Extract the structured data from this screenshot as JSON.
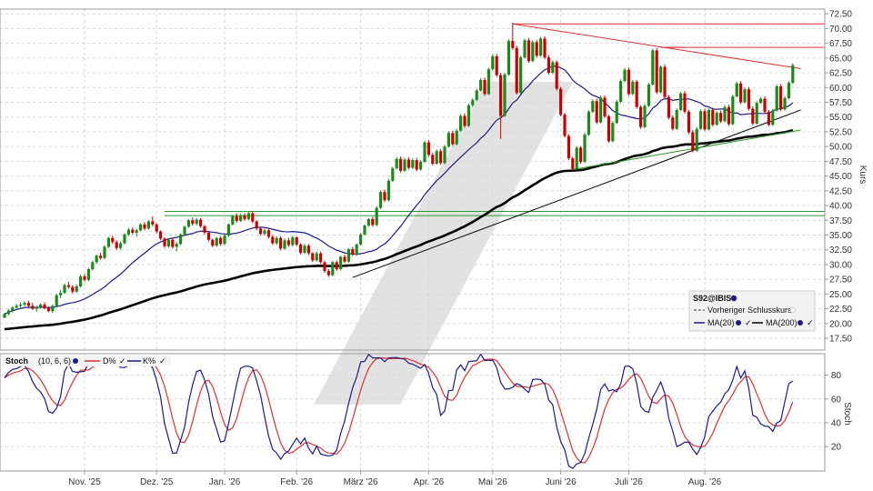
{
  "chart_data": {
    "type": "line",
    "symbol": "S92@IBIS",
    "price_panel": {
      "ylabel": "Kurs",
      "y_ticks": [
        "17.50",
        "20.00",
        "22.50",
        "25.00",
        "27.50",
        "30.00",
        "32.50",
        "35.00",
        "37.50",
        "40.00",
        "42.50",
        "45.00",
        "47.50",
        "50.00",
        "52.50",
        "55.00",
        "57.50",
        "60.00",
        "62.50",
        "65.00",
        "67.50",
        "70.00",
        "72.50"
      ],
      "ylim": [
        15.5,
        73.3
      ],
      "grid": true,
      "candles": [
        [
          21.0,
          21.8,
          20.9,
          21.6
        ],
        [
          21.6,
          22.4,
          21.4,
          22.2
        ],
        [
          22.2,
          22.9,
          21.9,
          22.7
        ],
        [
          22.7,
          23.3,
          22.4,
          23.0
        ],
        [
          23.0,
          23.6,
          22.6,
          23.2
        ],
        [
          23.2,
          23.8,
          22.9,
          23.5
        ],
        [
          23.5,
          23.9,
          22.8,
          23.0
        ],
        [
          23.0,
          23.5,
          22.3,
          22.5
        ],
        [
          22.5,
          23.1,
          22.0,
          22.8
        ],
        [
          22.8,
          23.4,
          22.5,
          23.2
        ],
        [
          23.2,
          23.6,
          22.4,
          22.6
        ],
        [
          22.6,
          22.9,
          21.9,
          22.1
        ],
        [
          22.1,
          23.2,
          21.8,
          23.0
        ],
        [
          23.0,
          25.0,
          22.9,
          24.8
        ],
        [
          24.8,
          25.7,
          24.3,
          25.2
        ],
        [
          25.2,
          26.8,
          25.0,
          26.5
        ],
        [
          26.5,
          27.1,
          25.9,
          26.2
        ],
        [
          26.2,
          26.5,
          25.1,
          25.4
        ],
        [
          25.4,
          26.6,
          25.2,
          26.3
        ],
        [
          26.3,
          28.3,
          26.1,
          28.0
        ],
        [
          28.0,
          28.4,
          27.1,
          27.4
        ],
        [
          27.4,
          29.4,
          27.2,
          29.2
        ],
        [
          29.2,
          30.6,
          29.0,
          30.4
        ],
        [
          30.4,
          31.7,
          30.1,
          31.5
        ],
        [
          31.5,
          32.0,
          30.8,
          31.1
        ],
        [
          31.1,
          33.3,
          30.9,
          33.0
        ],
        [
          33.0,
          34.7,
          32.8,
          34.5
        ],
        [
          34.5,
          34.9,
          33.5,
          33.8
        ],
        [
          33.8,
          34.1,
          32.5,
          32.8
        ],
        [
          32.8,
          33.9,
          32.5,
          33.6
        ],
        [
          33.6,
          35.3,
          33.4,
          35.1
        ],
        [
          35.1,
          36.2,
          34.8,
          35.9
        ],
        [
          35.9,
          36.3,
          35.1,
          35.4
        ],
        [
          35.4,
          36.1,
          34.7,
          35.8
        ],
        [
          35.8,
          37.0,
          35.6,
          36.8
        ],
        [
          36.8,
          37.2,
          35.8,
          36.1
        ],
        [
          36.1,
          37.5,
          35.9,
          37.3
        ],
        [
          37.3,
          38.2,
          36.5,
          36.8
        ],
        [
          36.8,
          37.0,
          35.3,
          35.6
        ],
        [
          35.6,
          35.8,
          34.1,
          34.4
        ],
        [
          34.4,
          34.6,
          32.8,
          33.1
        ],
        [
          33.1,
          34.4,
          32.8,
          34.2
        ],
        [
          34.2,
          34.5,
          32.7,
          33.0
        ],
        [
          33.0,
          33.8,
          32.2,
          33.5
        ],
        [
          33.5,
          35.3,
          33.3,
          35.1
        ],
        [
          35.1,
          36.6,
          34.9,
          36.4
        ],
        [
          36.4,
          37.7,
          36.2,
          37.5
        ],
        [
          37.5,
          38.0,
          36.6,
          36.9
        ],
        [
          36.9,
          37.9,
          36.6,
          37.6
        ],
        [
          37.6,
          37.9,
          36.2,
          36.5
        ],
        [
          36.5,
          36.7,
          35.1,
          35.4
        ],
        [
          35.4,
          35.6,
          33.9,
          34.2
        ],
        [
          34.2,
          34.4,
          32.9,
          33.2
        ],
        [
          33.2,
          34.7,
          33.0,
          34.5
        ],
        [
          34.5,
          34.8,
          33.2,
          33.5
        ],
        [
          33.5,
          35.1,
          33.3,
          34.9
        ],
        [
          34.9,
          37.0,
          34.7,
          36.8
        ],
        [
          36.8,
          38.4,
          36.6,
          38.2
        ],
        [
          38.2,
          38.7,
          37.1,
          37.4
        ],
        [
          37.4,
          38.6,
          37.2,
          38.3
        ],
        [
          38.3,
          38.7,
          37.4,
          37.7
        ],
        [
          37.7,
          38.9,
          37.5,
          38.7
        ],
        [
          38.7,
          39.0,
          37.0,
          37.3
        ],
        [
          37.3,
          37.5,
          35.8,
          36.1
        ],
        [
          36.1,
          36.3,
          34.9,
          35.2
        ],
        [
          35.2,
          36.1,
          34.9,
          35.8
        ],
        [
          35.8,
          36.2,
          34.4,
          34.7
        ],
        [
          34.7,
          35.0,
          33.3,
          33.6
        ],
        [
          33.6,
          34.8,
          33.3,
          34.5
        ],
        [
          34.5,
          34.8,
          32.4,
          32.7
        ],
        [
          32.7,
          34.4,
          32.5,
          34.1
        ],
        [
          34.1,
          34.5,
          33.0,
          33.3
        ],
        [
          33.3,
          34.9,
          33.1,
          34.6
        ],
        [
          34.6,
          34.8,
          33.1,
          33.4
        ],
        [
          33.4,
          33.6,
          31.7,
          32.0
        ],
        [
          32.0,
          33.5,
          31.8,
          33.2
        ],
        [
          33.2,
          33.5,
          31.6,
          31.9
        ],
        [
          31.9,
          32.1,
          30.4,
          30.7
        ],
        [
          30.7,
          32.2,
          30.5,
          31.9
        ],
        [
          31.9,
          32.2,
          30.1,
          30.4
        ],
        [
          30.4,
          30.6,
          28.6,
          28.9
        ],
        [
          28.9,
          29.2,
          27.9,
          28.2
        ],
        [
          28.2,
          30.6,
          28.0,
          30.4
        ],
        [
          30.4,
          30.7,
          28.9,
          29.2
        ],
        [
          29.2,
          31.5,
          29.0,
          31.3
        ],
        [
          31.3,
          31.7,
          30.2,
          30.5
        ],
        [
          30.5,
          32.8,
          30.3,
          32.6
        ],
        [
          32.6,
          33.0,
          31.4,
          31.7
        ],
        [
          31.7,
          33.6,
          31.5,
          33.4
        ],
        [
          33.4,
          35.3,
          33.2,
          35.1
        ],
        [
          35.1,
          36.8,
          34.9,
          36.6
        ],
        [
          36.6,
          37.9,
          36.4,
          37.7
        ],
        [
          37.7,
          38.1,
          36.4,
          36.7
        ],
        [
          36.7,
          39.9,
          36.5,
          39.6
        ],
        [
          39.6,
          42.6,
          39.4,
          42.3
        ],
        [
          42.3,
          42.7,
          40.6,
          40.9
        ],
        [
          40.9,
          44.5,
          40.7,
          44.2
        ],
        [
          44.2,
          46.6,
          44.0,
          46.3
        ],
        [
          46.3,
          48.2,
          46.1,
          47.9
        ],
        [
          47.9,
          48.3,
          45.6,
          45.9
        ],
        [
          45.9,
          48.1,
          45.7,
          47.8
        ],
        [
          47.8,
          48.2,
          46.1,
          46.4
        ],
        [
          46.4,
          48.0,
          46.2,
          47.7
        ],
        [
          47.7,
          48.1,
          45.8,
          46.1
        ],
        [
          46.1,
          47.7,
          45.9,
          47.4
        ],
        [
          47.4,
          51.0,
          47.2,
          50.7
        ],
        [
          50.7,
          51.1,
          48.3,
          48.6
        ],
        [
          48.6,
          49.0,
          46.8,
          47.1
        ],
        [
          47.1,
          49.5,
          46.9,
          49.2
        ],
        [
          49.2,
          49.6,
          46.9,
          47.2
        ],
        [
          47.2,
          50.3,
          47.0,
          50.0
        ],
        [
          50.0,
          52.6,
          49.8,
          52.3
        ],
        [
          52.3,
          52.7,
          50.1,
          50.4
        ],
        [
          50.4,
          53.0,
          50.2,
          52.7
        ],
        [
          52.7,
          55.5,
          52.5,
          55.2
        ],
        [
          55.2,
          55.6,
          53.2,
          53.5
        ],
        [
          53.5,
          57.3,
          53.3,
          57.0
        ],
        [
          57.0,
          58.2,
          56.7,
          57.9
        ],
        [
          57.9,
          59.8,
          57.7,
          59.5
        ],
        [
          59.5,
          61.6,
          59.3,
          61.3
        ],
        [
          61.3,
          61.7,
          58.6,
          58.9
        ],
        [
          58.9,
          63.4,
          58.7,
          63.1
        ],
        [
          63.1,
          65.6,
          62.9,
          65.3
        ],
        [
          65.3,
          65.7,
          61.8,
          62.1
        ],
        [
          62.1,
          62.5,
          51.3,
          55.2
        ],
        [
          55.2,
          62.5,
          55.0,
          62.2
        ],
        [
          62.2,
          68.2,
          62.0,
          67.9
        ],
        [
          67.9,
          71.0,
          66.4,
          66.7
        ],
        [
          66.7,
          67.1,
          58.8,
          59.1
        ],
        [
          59.1,
          65.4,
          58.9,
          65.1
        ],
        [
          65.1,
          68.3,
          64.9,
          68.0
        ],
        [
          68.0,
          68.4,
          64.2,
          64.5
        ],
        [
          64.5,
          68.0,
          64.3,
          67.7
        ],
        [
          67.7,
          68.1,
          65.1,
          65.4
        ],
        [
          65.4,
          68.6,
          65.2,
          68.3
        ],
        [
          68.3,
          68.7,
          64.8,
          65.1
        ],
        [
          65.1,
          65.5,
          62.2,
          62.5
        ],
        [
          62.5,
          64.6,
          62.3,
          64.3
        ],
        [
          64.3,
          64.6,
          59.5,
          59.8
        ],
        [
          59.8,
          60.1,
          55.1,
          55.4
        ],
        [
          55.4,
          55.7,
          51.5,
          51.8
        ],
        [
          51.8,
          52.1,
          47.7,
          48.0
        ],
        [
          48.0,
          48.3,
          45.9,
          46.2
        ],
        [
          46.2,
          50.1,
          46.0,
          49.8
        ],
        [
          49.8,
          50.1,
          47.1,
          47.4
        ],
        [
          47.4,
          52.3,
          47.2,
          52.0
        ],
        [
          52.0,
          56.2,
          51.8,
          55.9
        ],
        [
          55.9,
          58.0,
          55.7,
          57.7
        ],
        [
          57.7,
          58.1,
          53.8,
          54.1
        ],
        [
          54.1,
          58.6,
          53.9,
          58.3
        ],
        [
          58.3,
          58.7,
          54.8,
          55.1
        ],
        [
          55.1,
          55.4,
          50.6,
          50.9
        ],
        [
          50.9,
          54.3,
          50.7,
          54.0
        ],
        [
          54.0,
          57.9,
          53.8,
          57.6
        ],
        [
          57.6,
          61.4,
          57.4,
          61.1
        ],
        [
          61.1,
          63.3,
          60.9,
          63.0
        ],
        [
          63.0,
          63.4,
          58.6,
          58.9
        ],
        [
          58.9,
          61.3,
          58.7,
          61.0
        ],
        [
          61.0,
          61.3,
          56.4,
          56.7
        ],
        [
          56.7,
          57.0,
          53.0,
          53.3
        ],
        [
          53.3,
          57.2,
          53.1,
          56.9
        ],
        [
          56.9,
          60.8,
          56.7,
          60.5
        ],
        [
          60.5,
          66.6,
          60.3,
          66.3
        ],
        [
          66.3,
          66.7,
          58.9,
          59.2
        ],
        [
          59.2,
          63.8,
          59.0,
          63.5
        ],
        [
          63.5,
          63.9,
          58.1,
          58.4
        ],
        [
          58.4,
          58.7,
          54.6,
          54.9
        ],
        [
          54.9,
          55.3,
          52.7,
          53.0
        ],
        [
          53.0,
          56.5,
          52.8,
          56.2
        ],
        [
          56.2,
          59.3,
          56.0,
          59.0
        ],
        [
          59.0,
          59.4,
          55.6,
          55.9
        ],
        [
          55.9,
          56.2,
          52.1,
          52.4
        ],
        [
          52.4,
          52.8,
          49.0,
          49.3
        ],
        [
          49.3,
          53.3,
          49.1,
          53.0
        ],
        [
          53.0,
          56.3,
          52.8,
          56.0
        ],
        [
          56.0,
          56.4,
          52.6,
          52.9
        ],
        [
          52.9,
          56.5,
          52.7,
          56.2
        ],
        [
          56.2,
          56.6,
          53.4,
          53.7
        ],
        [
          53.7,
          56.0,
          53.5,
          55.7
        ],
        [
          55.7,
          56.1,
          54.0,
          54.3
        ],
        [
          54.3,
          57.0,
          54.1,
          56.7
        ],
        [
          56.7,
          57.1,
          53.5,
          53.8
        ],
        [
          53.8,
          58.8,
          53.6,
          58.5
        ],
        [
          58.5,
          61.0,
          58.3,
          60.7
        ],
        [
          60.7,
          61.1,
          57.2,
          57.5
        ],
        [
          57.5,
          60.0,
          57.3,
          59.7
        ],
        [
          59.7,
          60.1,
          56.1,
          56.4
        ],
        [
          56.4,
          56.8,
          53.6,
          53.9
        ],
        [
          53.9,
          57.7,
          53.7,
          57.4
        ],
        [
          57.4,
          58.4,
          57.2,
          58.1
        ],
        [
          58.1,
          58.5,
          55.6,
          55.9
        ],
        [
          55.9,
          56.2,
          53.4,
          53.7
        ],
        [
          53.7,
          56.4,
          53.5,
          56.1
        ],
        [
          56.1,
          60.5,
          55.9,
          60.2
        ],
        [
          60.2,
          60.6,
          56.0,
          56.3
        ],
        [
          56.3,
          58.5,
          56.1,
          58.2
        ],
        [
          58.2,
          61.1,
          58.0,
          60.8
        ],
        [
          60.8,
          64.1,
          60.6,
          63.8
        ]
      ],
      "ma20_color": "#1b1b8c",
      "ma200_color": "#000000",
      "up_color": "#1a8a1a",
      "down_color": "#cc0000",
      "horizontal_lines": [
        {
          "color": "#e03030",
          "value": 70.8
        },
        {
          "color": "#e03030",
          "value": 66.8
        },
        {
          "color": "#2a9a2a",
          "value": 39.0
        },
        {
          "color": "#2a9a2a",
          "value": 38.3
        }
      ],
      "trendlines": [
        {
          "color": "#e03030",
          "from": [
            127,
            70.8
          ],
          "to": [
            199,
            63.2
          ]
        },
        {
          "color": "#000000",
          "from": [
            87,
            27.8
          ],
          "to": [
            199,
            56.2
          ]
        },
        {
          "color": "#2a9a2a",
          "from": [
            142,
            46.1
          ],
          "to": [
            199,
            52.8
          ]
        },
        {
          "color": "#e03030",
          "from": [
            164,
            66.8
          ],
          "to": [
            170,
            66.8
          ]
        }
      ]
    },
    "stoch_panel": {
      "label": "Stoch",
      "params": "(10, 6, 6)",
      "ylabel": "Stoch",
      "y_ticks": [
        "20",
        "40",
        "60",
        "80"
      ],
      "ylim": [
        -0.5,
        98
      ],
      "d_label": "D%",
      "k_label": "K%",
      "d_color": "#e03030",
      "k_color": "#1b1b8c"
    },
    "legend": {
      "title": "S92@IBIS",
      "items": [
        {
          "label": "Vorheriger Schlusskurs",
          "style": "dashed",
          "color": "#333333"
        },
        {
          "label": "MA(20)",
          "style": "solid",
          "color": "#1b1b8c"
        },
        {
          "label": "MA(200)",
          "style": "solid",
          "color": "#000000"
        }
      ]
    },
    "x_axis": {
      "labels": [
        "Nov. '25",
        "Dez. '25",
        "Jan. '26",
        "Feb. '26",
        "März '26",
        "Apr. '26",
        "Mai '26",
        "Juni '26",
        "Juli '26",
        "Aug. '26"
      ],
      "label_candle_index": [
        20,
        38,
        55,
        73,
        89,
        106,
        122,
        139,
        156,
        175
      ]
    },
    "watermark": "logo",
    "watermark_color": "#d8d8d8"
  }
}
